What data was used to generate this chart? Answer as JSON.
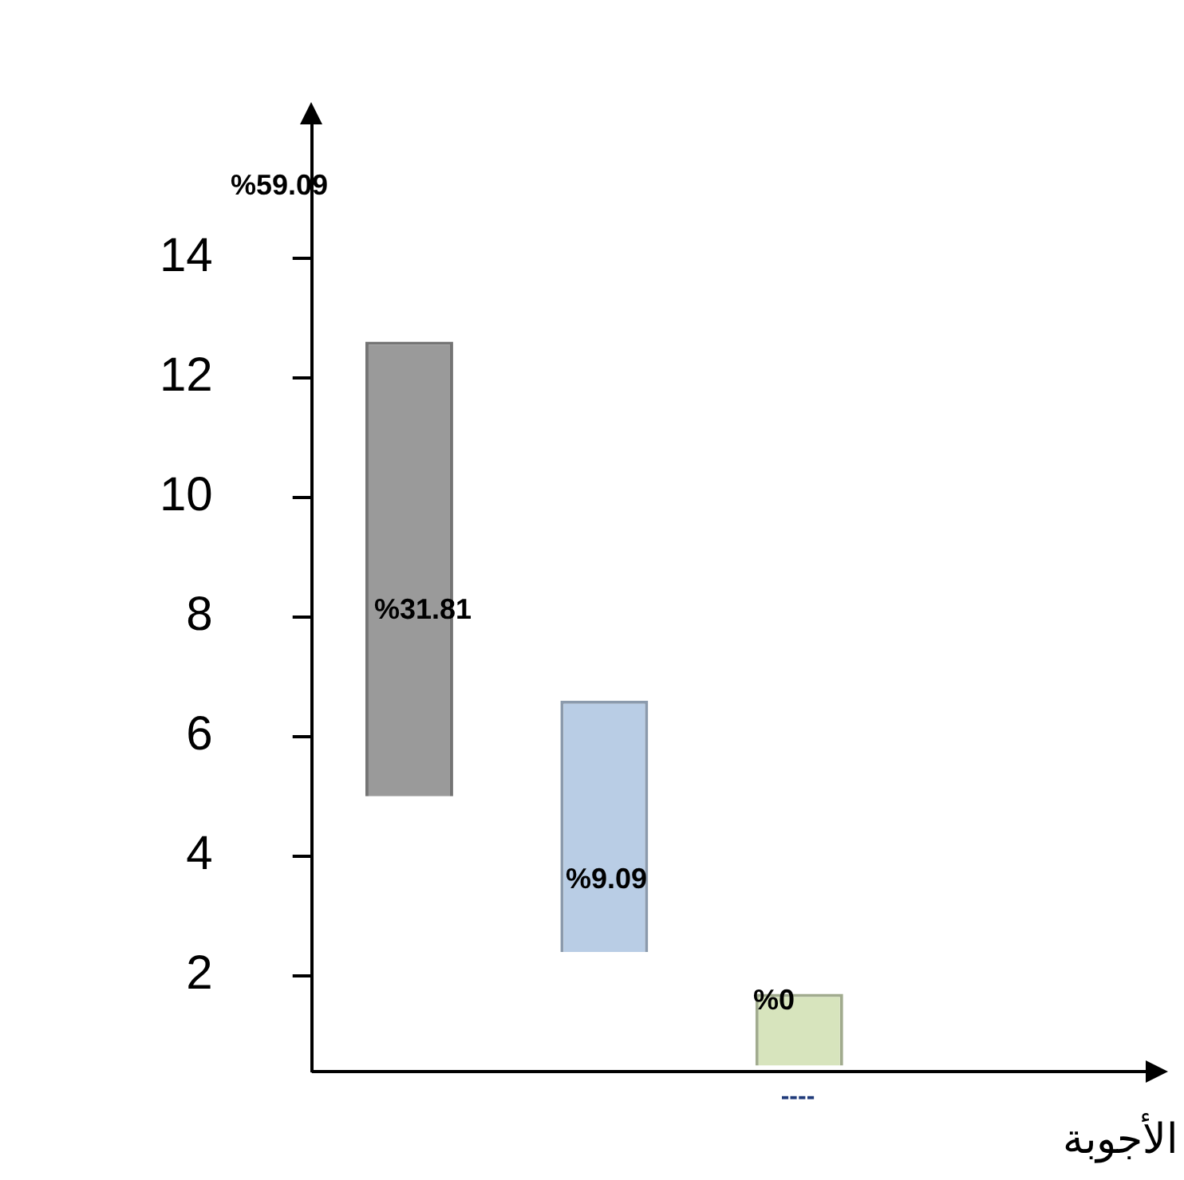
{
  "chart_data": {
    "type": "bar",
    "categories": [
      null,
      null,
      null
    ],
    "values": [
      7.6,
      4.2,
      1.2
    ],
    "base": [
      5,
      2.4,
      0.5
    ],
    "colors": [
      "#9a9a9a",
      "#b9cde5",
      "#d7e4bd"
    ],
    "ylim": [
      0.4,
      16.5
    ],
    "yticks": [
      2,
      4,
      6,
      8,
      10,
      12,
      14
    ],
    "grid": false,
    "legend": false,
    "annotations": [
      "%59.09",
      "%31.81",
      "%9.09",
      "%0",
      "----",
      "الأجوبة"
    ]
  }
}
